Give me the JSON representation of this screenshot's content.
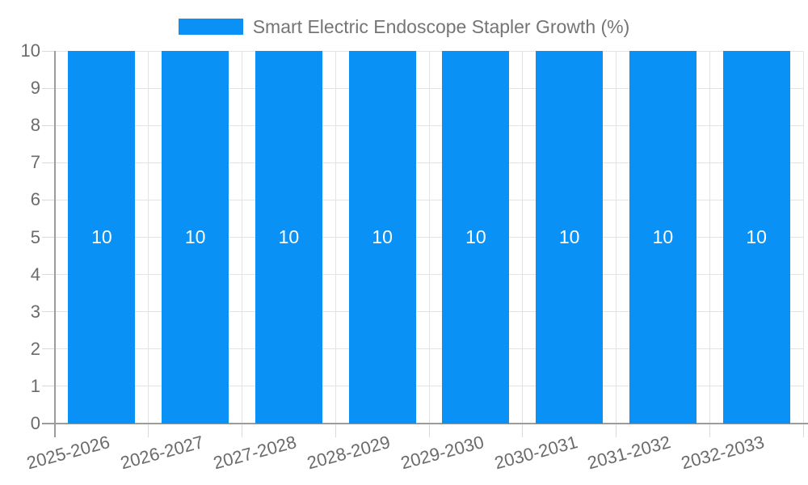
{
  "chart_data": {
    "type": "bar",
    "title": "Smart Electric Endoscope Stapler Growth (%)",
    "legend": {
      "position": "top",
      "label": "Smart Electric Endoscope Stapler Growth (%)"
    },
    "categories": [
      "2025-2026",
      "2026-2027",
      "2027-2028",
      "2028-2029",
      "2029-2030",
      "2030-2031",
      "2031-2032",
      "2032-2033"
    ],
    "values": [
      10,
      10,
      10,
      10,
      10,
      10,
      10,
      10
    ],
    "bar_labels": [
      "10",
      "10",
      "10",
      "10",
      "10",
      "10",
      "10",
      "10"
    ],
    "xlabel": "",
    "ylabel": "",
    "ylim": [
      0,
      10
    ],
    "ytick_step": 1,
    "yticks": [
      0,
      1,
      2,
      3,
      4,
      5,
      6,
      7,
      8,
      9,
      10
    ],
    "grid": true,
    "legend_position": "top",
    "colors": {
      "bar": "#0991f5",
      "bar_label": "#ffffff",
      "axis_text": "#6b6b6b",
      "legend_text": "#757575",
      "gridline": "#e3e3e3",
      "tick_line": "#d9d9d9",
      "axis_line": "#9c9c9c",
      "background": "#ffffff"
    }
  }
}
